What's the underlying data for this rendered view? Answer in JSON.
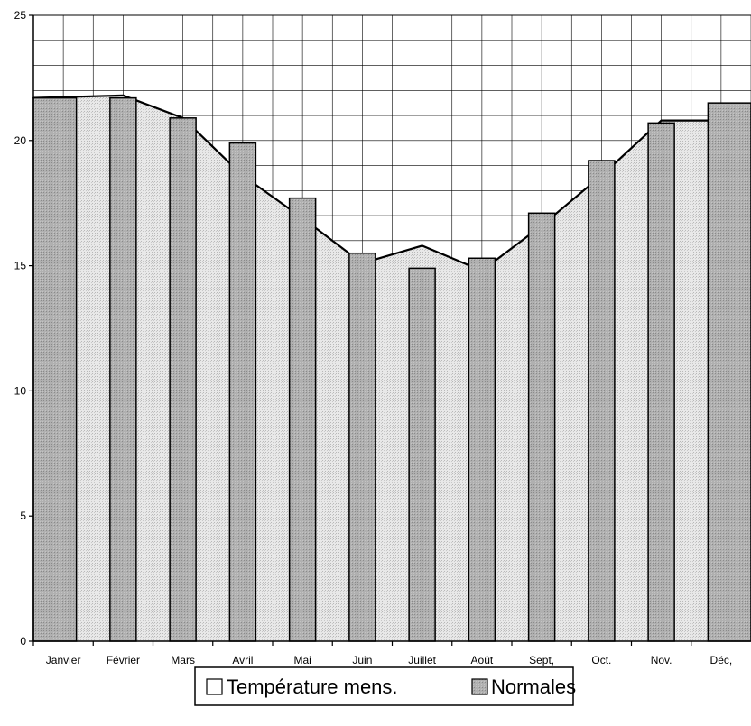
{
  "chart_data": {
    "type": "bar",
    "categories": [
      "Janvier",
      "Février",
      "Mars",
      "Avril",
      "Mai",
      "Juin",
      "Juillet",
      "Août",
      "Sept,",
      "Oct.",
      "Nov.",
      "Déc,"
    ],
    "series": [
      {
        "name": "Température mens.",
        "type": "area",
        "color": "#dcdcdc",
        "values": [
          21.7,
          21.8,
          20.9,
          18.6,
          16.9,
          15.1,
          15.8,
          14.8,
          16.6,
          18.6,
          20.8,
          20.8
        ]
      },
      {
        "name": "Normales",
        "type": "bar",
        "color": "#a9a9a9",
        "values": [
          21.7,
          21.7,
          20.9,
          19.9,
          17.7,
          15.5,
          14.9,
          15.3,
          17.1,
          19.2,
          20.7,
          21.5
        ]
      }
    ],
    "ylim": [
      0,
      25
    ],
    "yticks": [
      "0",
      "5",
      "10",
      "15",
      "20",
      "25"
    ],
    "grid": true,
    "legend": "bottom"
  }
}
